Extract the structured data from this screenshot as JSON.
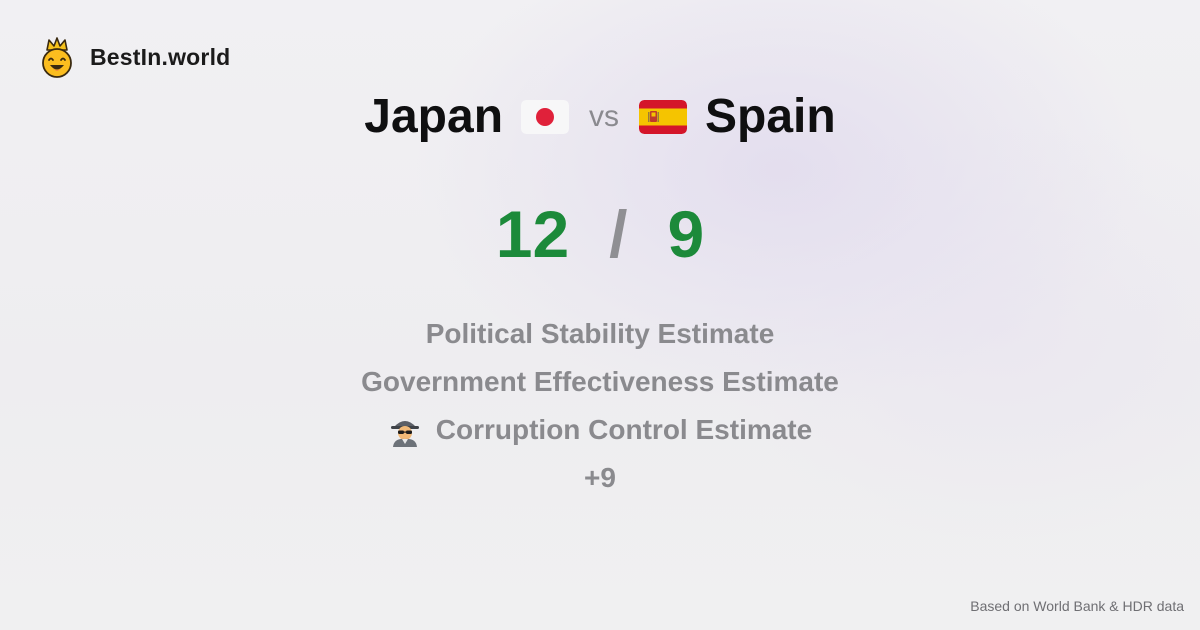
{
  "brand": {
    "name": "BestIn.world",
    "logo_icon": "crowned-smiley-icon"
  },
  "comparison": {
    "left_country": "Japan",
    "left_flag": "japan-flag-icon",
    "vs_label": "vs",
    "right_country": "Spain",
    "right_flag": "spain-flag-icon"
  },
  "scores": {
    "left": "12",
    "separator": "/",
    "right": "9",
    "color": "#1c8a3a"
  },
  "metrics": [
    {
      "label": "Political Stability Estimate",
      "icon": ""
    },
    {
      "label": "Government Effectiveness Estimate",
      "icon": ""
    },
    {
      "label": "Corruption Control Estimate",
      "icon": "detective-icon"
    },
    {
      "label": "+9",
      "icon": ""
    }
  ],
  "footer": {
    "source": "Based on World Bank & HDR data"
  }
}
